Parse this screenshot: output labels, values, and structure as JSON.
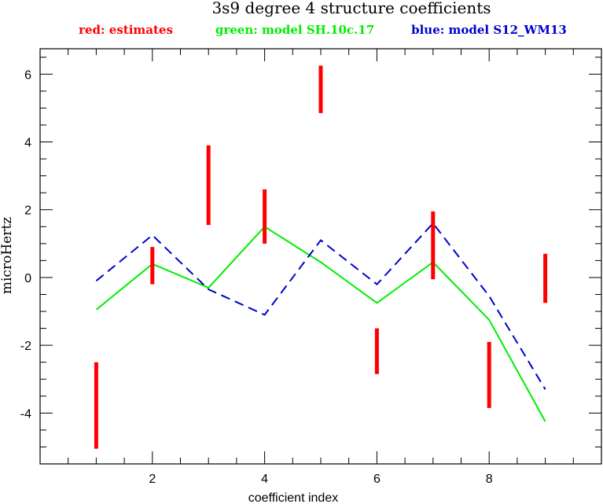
{
  "chart_data": {
    "type": "line",
    "title": "3s9 degree 4 structure coefficients",
    "xlabel": "coefficient index",
    "ylabel": "microHertz",
    "xlim": [
      0,
      10
    ],
    "ylim": [
      -5.5,
      6.75
    ],
    "x_ticks": [
      2,
      4,
      6,
      8
    ],
    "y_ticks": [
      -4,
      -2,
      0,
      2,
      4,
      6
    ],
    "grid": false,
    "legend": {
      "placement": "top",
      "entries": [
        {
          "text": "red: estimates",
          "color": "#ff0000"
        },
        {
          "text": "green: model SH.10c.17",
          "color": "#00ee00"
        },
        {
          "text": "blue: model S12_WM13",
          "color": "#0000cc"
        }
      ]
    },
    "estimates": {
      "color": "#ff0000",
      "style": "vertical error bars",
      "x": [
        1,
        2,
        3,
        4,
        5,
        6,
        7,
        8,
        9
      ],
      "low": [
        -5.05,
        -0.2,
        1.55,
        1.0,
        4.85,
        -2.85,
        -0.05,
        -3.85,
        -0.75
      ],
      "high": [
        -2.5,
        0.9,
        3.9,
        2.6,
        6.25,
        -1.5,
        1.95,
        -1.9,
        0.7
      ]
    },
    "series": [
      {
        "color": "#00ee00",
        "style": "solid",
        "x": [
          1,
          2,
          3,
          4,
          5,
          6,
          7,
          8,
          9
        ],
        "values": [
          -0.95,
          0.4,
          -0.3,
          1.5,
          0.45,
          -0.75,
          0.45,
          -1.25,
          -4.25
        ]
      },
      {
        "color": "#0000cc",
        "style": "dashed",
        "x": [
          1,
          2,
          3,
          4,
          5,
          6,
          7,
          8,
          9
        ],
        "values": [
          -0.1,
          1.25,
          -0.35,
          -1.1,
          1.1,
          -0.2,
          1.6,
          -0.55,
          -3.3
        ]
      }
    ]
  }
}
